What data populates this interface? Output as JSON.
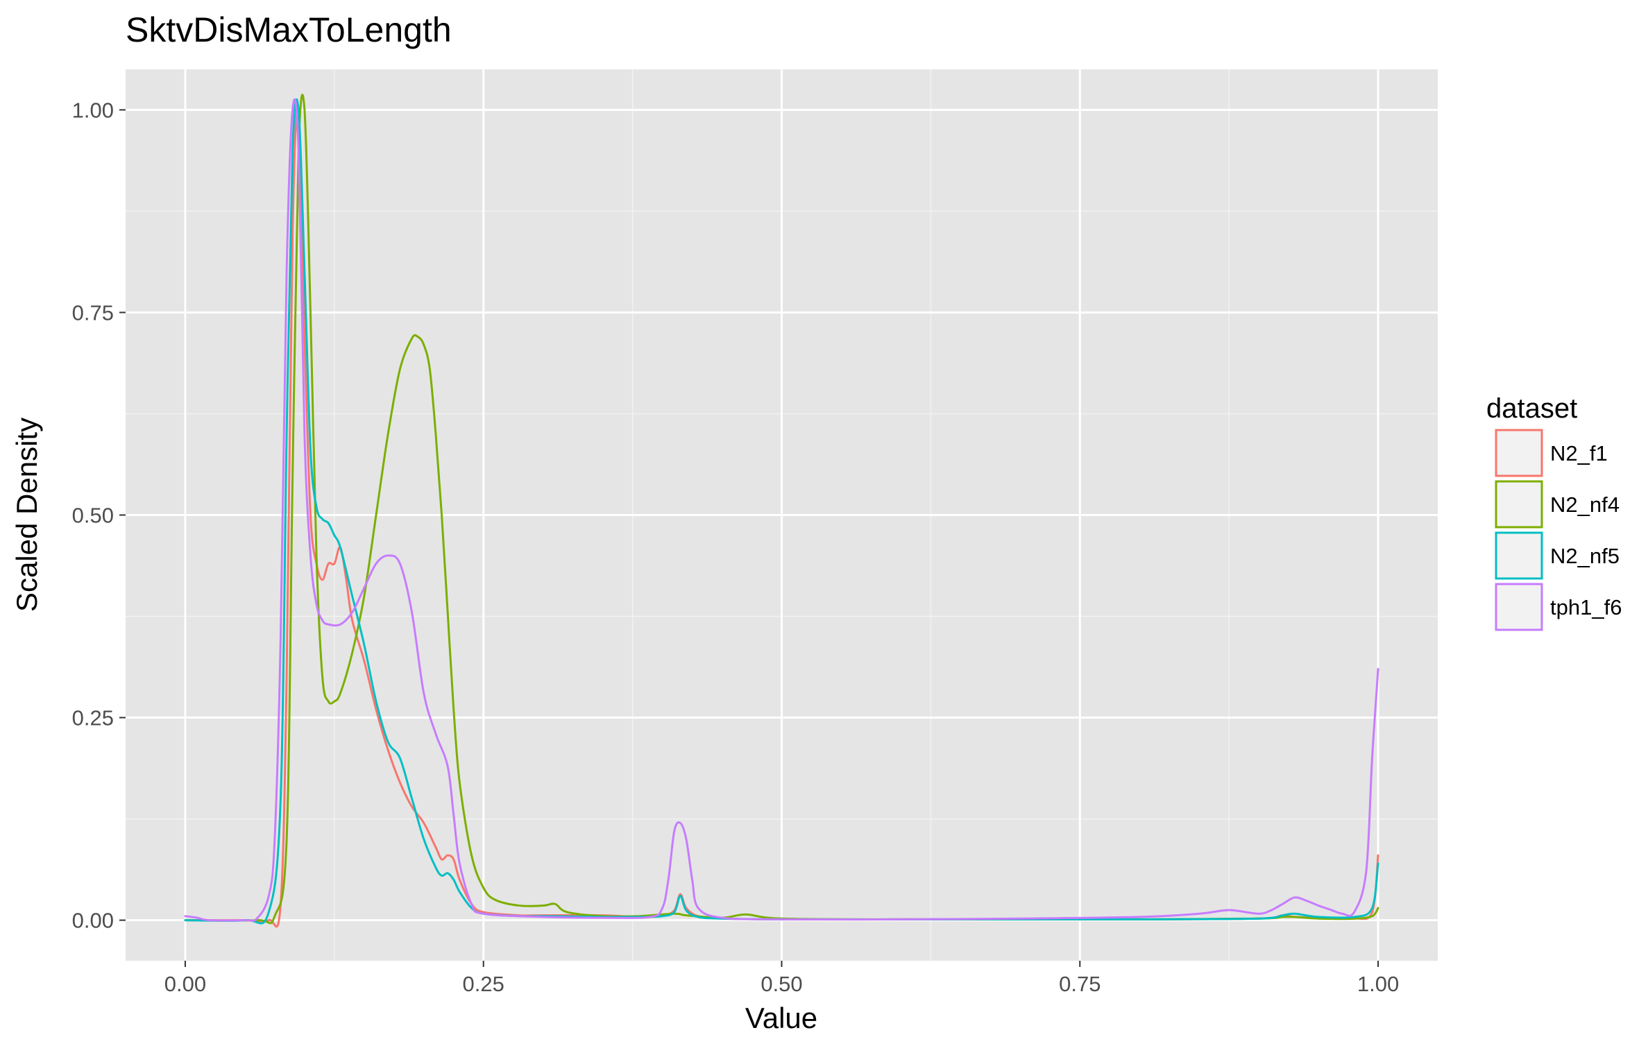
{
  "chart_data": {
    "type": "line",
    "title": "SktvDisMaxToLength",
    "xlabel": "Value",
    "ylabel": "Scaled Density",
    "xlim": [
      -0.05,
      1.05
    ],
    "ylim": [
      -0.05,
      1.05
    ],
    "x_ticks": [
      0,
      0.25,
      0.5,
      0.75,
      1.0
    ],
    "x_tick_labels": [
      "0.00",
      "0.25",
      "0.50",
      "0.75",
      "1.00"
    ],
    "y_ticks": [
      0,
      0.25,
      0.5,
      0.75,
      1.0
    ],
    "y_tick_labels": [
      "0.00",
      "0.25",
      "0.50",
      "0.75",
      "1.00"
    ],
    "grid": true,
    "background": "#e5e5e5",
    "legend": {
      "title": "dataset",
      "position": "right"
    },
    "series": [
      {
        "name": "N2_f1",
        "color": "#f8766d",
        "x": [
          0,
          0.05,
          0.07,
          0.08,
          0.085,
          0.09,
          0.095,
          0.1,
          0.105,
          0.11,
          0.115,
          0.12,
          0.125,
          0.13,
          0.135,
          0.14,
          0.15,
          0.16,
          0.17,
          0.18,
          0.19,
          0.2,
          0.21,
          0.215,
          0.22,
          0.225,
          0.23,
          0.24,
          0.25,
          0.28,
          0.3,
          0.35,
          0.38,
          0.4,
          0.41,
          0.415,
          0.42,
          0.43,
          0.45,
          0.5,
          0.6,
          0.7,
          0.8,
          0.9,
          0.92,
          0.93,
          0.95,
          0.98,
          0.995,
          1.0
        ],
        "y": [
          0,
          0,
          0,
          0.02,
          0.3,
          0.85,
          1.0,
          0.72,
          0.5,
          0.44,
          0.42,
          0.44,
          0.44,
          0.46,
          0.42,
          0.37,
          0.32,
          0.26,
          0.21,
          0.17,
          0.14,
          0.12,
          0.09,
          0.075,
          0.08,
          0.075,
          0.05,
          0.02,
          0.01,
          0.006,
          0.006,
          0.006,
          0.004,
          0.006,
          0.012,
          0.032,
          0.015,
          0.005,
          0.002,
          0.001,
          0.001,
          0.001,
          0.001,
          0.002,
          0.006,
          0.004,
          0.003,
          0.002,
          0.01,
          0.08
        ]
      },
      {
        "name": "N2_nf4",
        "color": "#7cae00",
        "x": [
          0,
          0.06,
          0.075,
          0.085,
          0.09,
          0.095,
          0.1,
          0.105,
          0.11,
          0.115,
          0.12,
          0.125,
          0.13,
          0.14,
          0.15,
          0.16,
          0.17,
          0.18,
          0.19,
          0.195,
          0.2,
          0.205,
          0.21,
          0.215,
          0.22,
          0.225,
          0.23,
          0.24,
          0.25,
          0.26,
          0.28,
          0.3,
          0.31,
          0.32,
          0.35,
          0.38,
          0.41,
          0.42,
          0.45,
          0.47,
          0.5,
          0.6,
          0.7,
          0.8,
          0.9,
          0.92,
          0.93,
          0.95,
          0.98,
          0.995,
          1.0
        ],
        "y": [
          0,
          0,
          0.005,
          0.1,
          0.55,
          0.95,
          1.0,
          0.75,
          0.45,
          0.3,
          0.27,
          0.27,
          0.28,
          0.33,
          0.4,
          0.5,
          0.6,
          0.68,
          0.718,
          0.72,
          0.71,
          0.68,
          0.6,
          0.5,
          0.38,
          0.26,
          0.17,
          0.08,
          0.04,
          0.025,
          0.018,
          0.018,
          0.02,
          0.01,
          0.005,
          0.005,
          0.008,
          0.006,
          0.003,
          0.007,
          0.002,
          0.001,
          0.001,
          0.001,
          0.002,
          0.004,
          0.004,
          0.002,
          0.002,
          0.005,
          0.015
        ]
      },
      {
        "name": "N2_nf5",
        "color": "#00bfc4",
        "x": [
          0,
          0.05,
          0.07,
          0.08,
          0.085,
          0.09,
          0.095,
          0.1,
          0.105,
          0.11,
          0.115,
          0.12,
          0.125,
          0.13,
          0.14,
          0.15,
          0.16,
          0.17,
          0.18,
          0.19,
          0.2,
          0.21,
          0.215,
          0.22,
          0.225,
          0.23,
          0.24,
          0.25,
          0.28,
          0.3,
          0.35,
          0.38,
          0.4,
          0.41,
          0.415,
          0.42,
          0.43,
          0.45,
          0.5,
          0.6,
          0.7,
          0.8,
          0.9,
          0.92,
          0.93,
          0.95,
          0.98,
          0.995,
          1.0
        ],
        "y": [
          0,
          0,
          0.01,
          0.15,
          0.6,
          0.95,
          1.0,
          0.8,
          0.58,
          0.51,
          0.495,
          0.49,
          0.475,
          0.46,
          0.4,
          0.34,
          0.27,
          0.22,
          0.2,
          0.15,
          0.1,
          0.065,
          0.055,
          0.058,
          0.05,
          0.035,
          0.015,
          0.008,
          0.005,
          0.005,
          0.004,
          0.004,
          0.005,
          0.01,
          0.03,
          0.012,
          0.004,
          0.002,
          0.001,
          0.001,
          0.001,
          0.001,
          0.002,
          0.006,
          0.008,
          0.004,
          0.004,
          0.015,
          0.07
        ]
      },
      {
        "name": "tph1_f6",
        "color": "#c77cff",
        "x": [
          0,
          0.01,
          0.02,
          0.05,
          0.06,
          0.07,
          0.075,
          0.08,
          0.085,
          0.09,
          0.095,
          0.1,
          0.105,
          0.11,
          0.115,
          0.12,
          0.13,
          0.14,
          0.15,
          0.16,
          0.17,
          0.18,
          0.19,
          0.2,
          0.21,
          0.22,
          0.225,
          0.23,
          0.24,
          0.25,
          0.3,
          0.35,
          0.39,
          0.4,
          0.405,
          0.41,
          0.415,
          0.42,
          0.425,
          0.43,
          0.45,
          0.5,
          0.6,
          0.7,
          0.8,
          0.85,
          0.87,
          0.88,
          0.9,
          0.91,
          0.92,
          0.93,
          0.94,
          0.95,
          0.96,
          0.97,
          0.98,
          0.99,
          0.995,
          1.0
        ],
        "y": [
          0.005,
          0.003,
          0,
          0,
          0.002,
          0.03,
          0.1,
          0.35,
          0.8,
          1.0,
          0.95,
          0.6,
          0.45,
          0.39,
          0.37,
          0.365,
          0.365,
          0.38,
          0.41,
          0.44,
          0.45,
          0.44,
          0.38,
          0.28,
          0.23,
          0.19,
          0.13,
          0.07,
          0.02,
          0.008,
          0.004,
          0.003,
          0.004,
          0.015,
          0.05,
          0.11,
          0.12,
          0.1,
          0.05,
          0.015,
          0.003,
          0.001,
          0.001,
          0.002,
          0.004,
          0.008,
          0.012,
          0.012,
          0.008,
          0.012,
          0.02,
          0.028,
          0.024,
          0.018,
          0.013,
          0.008,
          0.01,
          0.06,
          0.2,
          0.31
        ]
      }
    ]
  }
}
